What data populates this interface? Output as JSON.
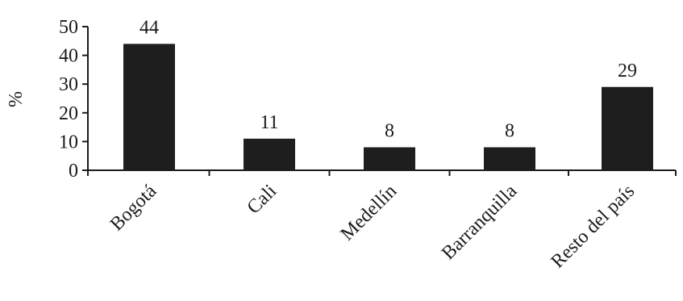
{
  "chart_data": {
    "type": "bar",
    "categories": [
      "Bogotá",
      "Cali",
      "Medellín",
      "Barranquilla",
      "Resto del país"
    ],
    "values": [
      44,
      11,
      8,
      8,
      29
    ],
    "data_labels": [
      "44",
      "11",
      "8",
      "8",
      "29"
    ],
    "ylabel": "%",
    "xlabel": "",
    "title": "",
    "ylim": [
      0,
      50
    ],
    "yticks": [
      0,
      10,
      20,
      30,
      40,
      50
    ],
    "ytick_labels": [
      "0",
      "10",
      "20",
      "30",
      "40",
      "50"
    ],
    "grid": false,
    "legend": "none",
    "bar_color": "#1e1e1e"
  }
}
